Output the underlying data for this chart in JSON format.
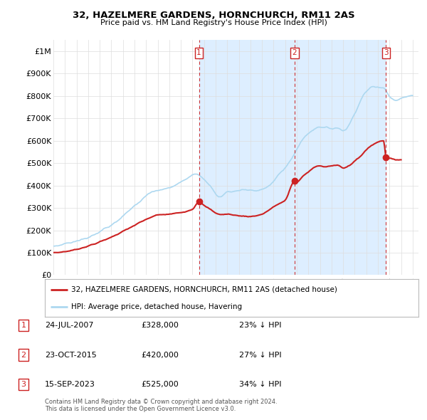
{
  "title": "32, HAZELMERE GARDENS, HORNCHURCH, RM11 2AS",
  "subtitle": "Price paid vs. HM Land Registry's House Price Index (HPI)",
  "ylim": [
    0,
    1050000
  ],
  "yticks": [
    0,
    100000,
    200000,
    300000,
    400000,
    500000,
    600000,
    700000,
    800000,
    900000,
    1000000
  ],
  "ytick_labels": [
    "£0",
    "£100K",
    "£200K",
    "£300K",
    "£400K",
    "£500K",
    "£600K",
    "£700K",
    "£800K",
    "£900K",
    "£1M"
  ],
  "xlim_start": 1995.0,
  "xlim_end": 2026.5,
  "hpi_color": "#add8f0",
  "price_color": "#cc2222",
  "vline_color": "#cc2222",
  "shade_color": "#ddeeff",
  "transaction_dates": [
    2007.558,
    2015.817,
    2023.706
  ],
  "transaction_prices": [
    328000,
    420000,
    525000
  ],
  "transaction_labels": [
    "1",
    "2",
    "3"
  ],
  "legend_entries": [
    "32, HAZELMERE GARDENS, HORNCHURCH, RM11 2AS (detached house)",
    "HPI: Average price, detached house, Havering"
  ],
  "table_data": [
    [
      "1",
      "24-JUL-2007",
      "£328,000",
      "23% ↓ HPI"
    ],
    [
      "2",
      "23-OCT-2015",
      "£420,000",
      "27% ↓ HPI"
    ],
    [
      "3",
      "15-SEP-2023",
      "£525,000",
      "34% ↓ HPI"
    ]
  ],
  "footer": "Contains HM Land Registry data © Crown copyright and database right 2024.\nThis data is licensed under the Open Government Licence v3.0.",
  "background_color": "#ffffff",
  "grid_color": "#dddddd"
}
